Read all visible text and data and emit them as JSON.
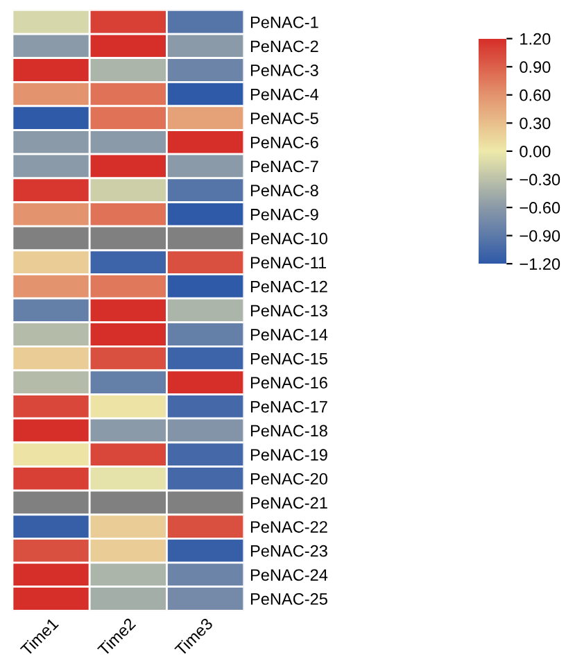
{
  "chart_data": {
    "type": "heatmap",
    "categories": [
      "Time1",
      "Time2",
      "Time3"
    ],
    "y_categories": [
      "PeNAC-1",
      "PeNAC-2",
      "PeNAC-3",
      "PeNAC-4",
      "PeNAC-5",
      "PeNAC-6",
      "PeNAC-7",
      "PeNAC-8",
      "PeNAC-9",
      "PeNAC-10",
      "PeNAC-11",
      "PeNAC-12",
      "PeNAC-13",
      "PeNAC-14",
      "PeNAC-15",
      "PeNAC-16",
      "PeNAC-17",
      "PeNAC-18",
      "PeNAC-19",
      "PeNAC-20",
      "PeNAC-21",
      "PeNAC-22",
      "PeNAC-23",
      "PeNAC-24",
      "PeNAC-25"
    ],
    "cells": [
      [
        -0.15,
        1.1,
        -0.95
      ],
      [
        -0.6,
        1.2,
        -0.6
      ],
      [
        1.2,
        -0.4,
        -0.8
      ],
      [
        0.6,
        0.8,
        -1.2
      ],
      [
        -1.2,
        0.8,
        0.5
      ],
      [
        -0.6,
        -0.6,
        1.2
      ],
      [
        -0.6,
        1.2,
        -0.6
      ],
      [
        1.15,
        -0.2,
        -0.95
      ],
      [
        0.6,
        0.8,
        -1.2
      ],
      [
        null,
        null,
        null
      ],
      [
        0.2,
        -1.1,
        1.0
      ],
      [
        0.6,
        0.75,
        -1.2
      ],
      [
        -0.85,
        1.2,
        -0.4
      ],
      [
        -0.35,
        1.2,
        -0.85
      ],
      [
        0.2,
        1.0,
        -1.1
      ],
      [
        -0.35,
        -0.85,
        1.2
      ],
      [
        1.05,
        0.05,
        -1.05
      ],
      [
        1.2,
        -0.6,
        -0.65
      ],
      [
        0.05,
        1.05,
        -1.05
      ],
      [
        1.1,
        -0.05,
        -1.05
      ],
      [
        null,
        null,
        null
      ],
      [
        -1.15,
        0.2,
        1.0
      ],
      [
        1.0,
        0.2,
        -1.15
      ],
      [
        1.2,
        -0.4,
        -0.8
      ],
      [
        1.2,
        -0.45,
        -0.75
      ]
    ],
    "clim": [
      -1.2,
      1.2
    ],
    "cticks": [
      {
        "value": 1.2,
        "label": "1.20"
      },
      {
        "value": 0.9,
        "label": "0.90"
      },
      {
        "value": 0.6,
        "label": "0.60"
      },
      {
        "value": 0.3,
        "label": "0.30"
      },
      {
        "value": 0.0,
        "label": "0.00"
      },
      {
        "value": -0.3,
        "label": "−0.30"
      },
      {
        "value": -0.6,
        "label": "−0.60"
      },
      {
        "value": -0.9,
        "label": "−0.90"
      },
      {
        "value": -1.2,
        "label": "−1.20"
      }
    ]
  }
}
